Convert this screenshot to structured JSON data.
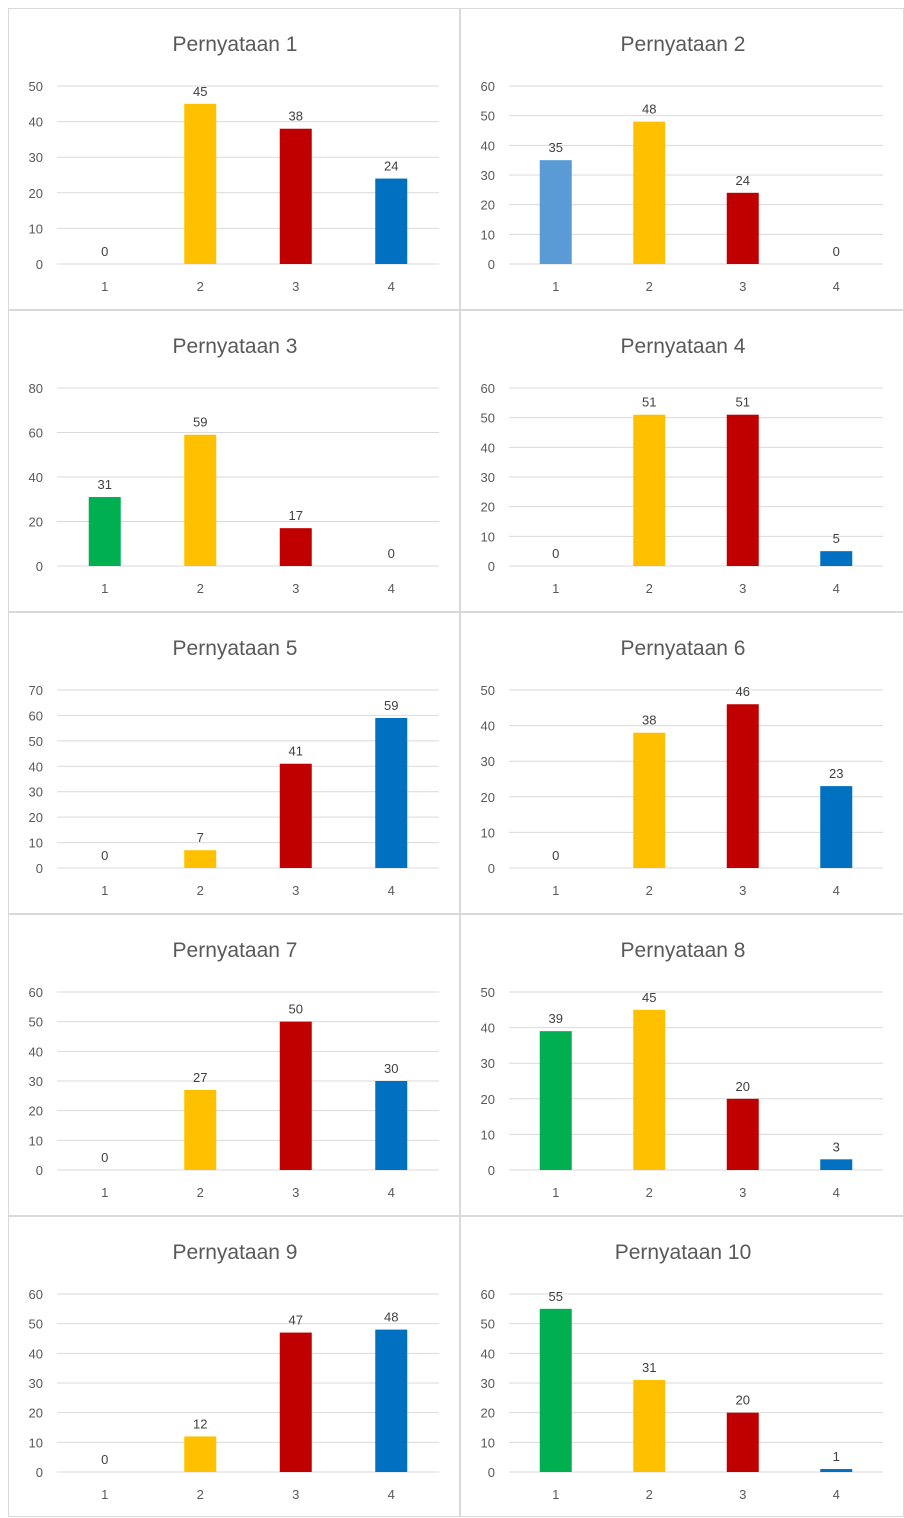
{
  "chart_data": [
    {
      "type": "bar",
      "title": "Pernyataan 1",
      "categories": [
        "1",
        "2",
        "3",
        "4"
      ],
      "values": [
        0,
        45,
        38,
        24
      ],
      "yticks": [
        0,
        10,
        20,
        30,
        40,
        50
      ],
      "ylim": [
        0,
        50
      ],
      "grid": true
    },
    {
      "type": "bar",
      "title": "Pernyataan 2",
      "categories": [
        "1",
        "2",
        "3",
        "4"
      ],
      "values": [
        35,
        48,
        24,
        0
      ],
      "yticks": [
        0,
        10,
        20,
        30,
        40,
        50,
        60
      ],
      "ylim": [
        0,
        60
      ],
      "grid": true
    },
    {
      "type": "bar",
      "title": "Pernyataan 3",
      "categories": [
        "1",
        "2",
        "3",
        "4"
      ],
      "values": [
        31,
        59,
        17,
        0
      ],
      "yticks": [
        0,
        20,
        40,
        60,
        80
      ],
      "ylim": [
        0,
        80
      ],
      "grid": true
    },
    {
      "type": "bar",
      "title": "Pernyataan 4",
      "categories": [
        "1",
        "2",
        "3",
        "4"
      ],
      "values": [
        0,
        51,
        51,
        5
      ],
      "yticks": [
        0,
        10,
        20,
        30,
        40,
        50,
        60
      ],
      "ylim": [
        0,
        60
      ],
      "grid": true
    },
    {
      "type": "bar",
      "title": "Pernyataan 5",
      "categories": [
        "1",
        "2",
        "3",
        "4"
      ],
      "values": [
        0,
        7,
        41,
        59
      ],
      "yticks": [
        0,
        10,
        20,
        30,
        40,
        50,
        60,
        70
      ],
      "ylim": [
        0,
        70
      ],
      "grid": true
    },
    {
      "type": "bar",
      "title": "Pernyataan 6",
      "categories": [
        "1",
        "2",
        "3",
        "4"
      ],
      "values": [
        0,
        38,
        46,
        23
      ],
      "yticks": [
        0,
        10,
        20,
        30,
        40,
        50
      ],
      "ylim": [
        0,
        50
      ],
      "grid": true
    },
    {
      "type": "bar",
      "title": "Pernyataan 7",
      "categories": [
        "1",
        "2",
        "3",
        "4"
      ],
      "values": [
        0,
        27,
        50,
        30
      ],
      "yticks": [
        0,
        10,
        20,
        30,
        40,
        50,
        60
      ],
      "ylim": [
        0,
        60
      ],
      "grid": true
    },
    {
      "type": "bar",
      "title": "Pernyataan 8",
      "categories": [
        "1",
        "2",
        "3",
        "4"
      ],
      "values": [
        39,
        45,
        20,
        3
      ],
      "yticks": [
        0,
        10,
        20,
        30,
        40,
        50
      ],
      "ylim": [
        0,
        50
      ],
      "grid": true
    },
    {
      "type": "bar",
      "title": "Pernyataan 9",
      "categories": [
        "1",
        "2",
        "3",
        "4"
      ],
      "values": [
        0,
        12,
        47,
        48
      ],
      "yticks": [
        0,
        10,
        20,
        30,
        40,
        50,
        60
      ],
      "ylim": [
        0,
        60
      ],
      "grid": true
    },
    {
      "type": "bar",
      "title": "Pernyataan 10",
      "categories": [
        "1",
        "2",
        "3",
        "4"
      ],
      "values": [
        55,
        31,
        20,
        1
      ],
      "yticks": [
        0,
        10,
        20,
        30,
        40,
        50,
        60
      ],
      "ylim": [
        0,
        60
      ],
      "grid": true
    }
  ],
  "bar_colors": {
    "chart1": [
      "#5b9bd5",
      "#ffc000",
      "#c00000",
      "#0070c0"
    ],
    "chart2": [
      "#5b9bd5",
      "#ffc000",
      "#c00000",
      "#0070c0"
    ],
    "default": [
      "#00b050",
      "#ffc000",
      "#c00000",
      "#0070c0"
    ]
  }
}
